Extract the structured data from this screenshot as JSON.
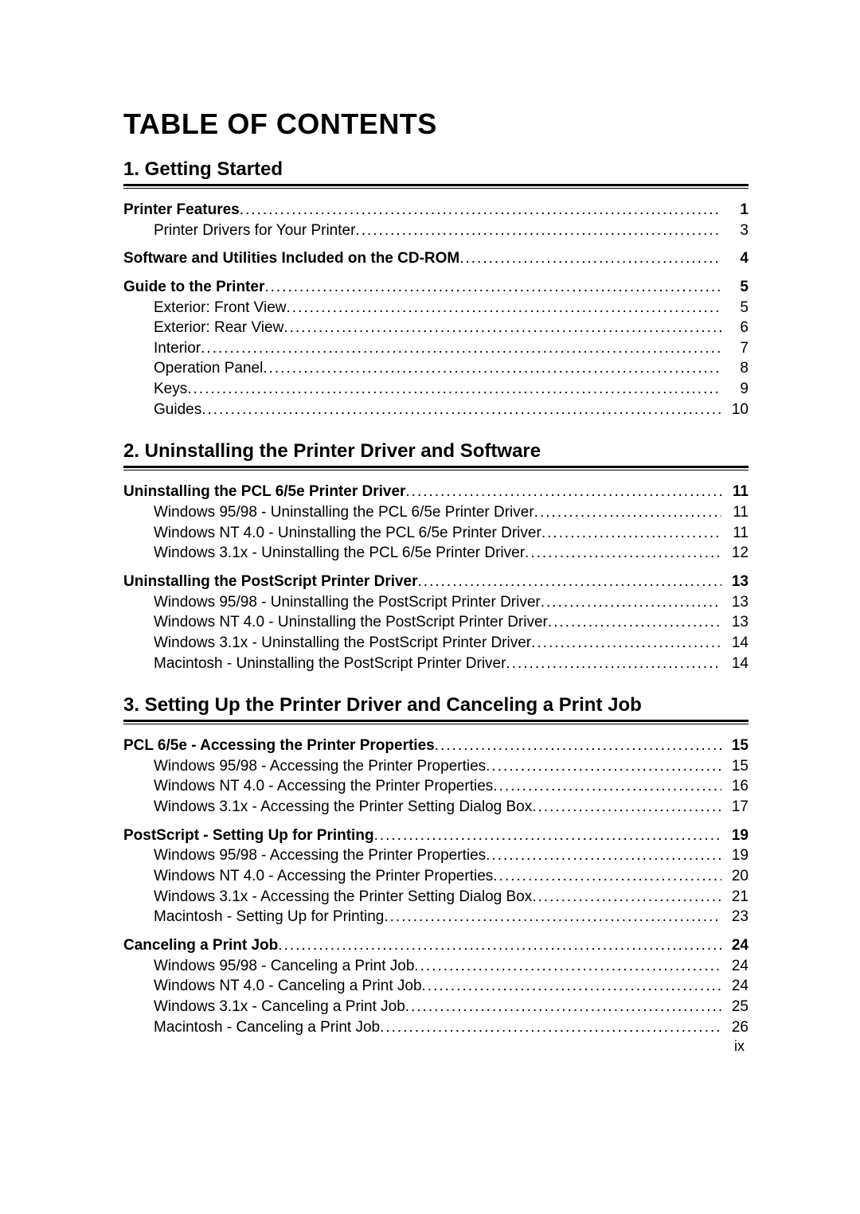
{
  "title": "TABLE OF CONTENTS",
  "page_number": "ix",
  "chapters": [
    {
      "heading": "1. Getting Started",
      "groups": [
        {
          "items": [
            {
              "label": "Printer Features",
              "page": "1",
              "bold": true,
              "sub": false
            },
            {
              "label": "Printer Drivers for Your Printer",
              "page": "3",
              "bold": false,
              "sub": true
            }
          ]
        },
        {
          "items": [
            {
              "label": "Software and Utilities Included on the CD-ROM",
              "page": "4",
              "bold": true,
              "sub": false
            }
          ]
        },
        {
          "items": [
            {
              "label": "Guide to the Printer",
              "page": "5",
              "bold": true,
              "sub": false
            },
            {
              "label": "Exterior: Front View",
              "page": "5",
              "bold": false,
              "sub": true
            },
            {
              "label": "Exterior: Rear View",
              "page": "6",
              "bold": false,
              "sub": true
            },
            {
              "label": "Interior",
              "page": "7",
              "bold": false,
              "sub": true
            },
            {
              "label": "Operation Panel",
              "page": "8",
              "bold": false,
              "sub": true
            },
            {
              "label": "Keys",
              "page": "9",
              "bold": false,
              "sub": true
            },
            {
              "label": "Guides",
              "page": "10",
              "bold": false,
              "sub": true
            }
          ]
        }
      ]
    },
    {
      "heading": "2. Uninstalling the Printer Driver and Software",
      "groups": [
        {
          "items": [
            {
              "label": "Uninstalling the PCL 6/5e Printer Driver",
              "page": "11",
              "bold": true,
              "sub": false
            },
            {
              "label": "Windows 95/98 - Uninstalling the PCL 6/5e Printer Driver",
              "page": "11",
              "bold": false,
              "sub": true
            },
            {
              "label": "Windows NT 4.0 - Uninstalling the PCL 6/5e Printer Driver",
              "page": "11",
              "bold": false,
              "sub": true
            },
            {
              "label": "Windows 3.1x - Uninstalling the PCL 6/5e Printer Driver",
              "page": "12",
              "bold": false,
              "sub": true
            }
          ]
        },
        {
          "items": [
            {
              "label": "Uninstalling the PostScript Printer Driver",
              "page": "13",
              "bold": true,
              "sub": false
            },
            {
              "label": "Windows 95/98 - Uninstalling the PostScript Printer Driver",
              "page": "13",
              "bold": false,
              "sub": true
            },
            {
              "label": "Windows NT 4.0 - Uninstalling the PostScript Printer Driver",
              "page": "13",
              "bold": false,
              "sub": true
            },
            {
              "label": "Windows 3.1x - Uninstalling the PostScript Printer Driver",
              "page": "14",
              "bold": false,
              "sub": true
            },
            {
              "label": "Macintosh - Uninstalling the PostScript Printer Driver",
              "page": "14",
              "bold": false,
              "sub": true
            }
          ]
        }
      ]
    },
    {
      "heading": "3. Setting Up the Printer Driver and Canceling a Print Job",
      "groups": [
        {
          "items": [
            {
              "label": "PCL 6/5e - Accessing the Printer Properties",
              "page": "15",
              "bold": true,
              "sub": false
            },
            {
              "label": "Windows 95/98 - Accessing the Printer Properties",
              "page": "15",
              "bold": false,
              "sub": true
            },
            {
              "label": "Windows NT 4.0 - Accessing the Printer Properties",
              "page": "16",
              "bold": false,
              "sub": true
            },
            {
              "label": "Windows 3.1x - Accessing the Printer Setting Dialog Box",
              "page": "17",
              "bold": false,
              "sub": true
            }
          ]
        },
        {
          "items": [
            {
              "label": "PostScript - Setting Up for Printing",
              "page": "19",
              "bold": true,
              "sub": false
            },
            {
              "label": "Windows 95/98 - Accessing the Printer Properties",
              "page": "19",
              "bold": false,
              "sub": true
            },
            {
              "label": "Windows NT 4.0 - Accessing the Printer Properties",
              "page": "20",
              "bold": false,
              "sub": true
            },
            {
              "label": "Windows 3.1x - Accessing the Printer Setting Dialog Box",
              "page": "21",
              "bold": false,
              "sub": true
            },
            {
              "label": "Macintosh - Setting Up for Printing",
              "page": "23",
              "bold": false,
              "sub": true
            }
          ]
        },
        {
          "items": [
            {
              "label": "Canceling a Print Job",
              "page": "24",
              "bold": true,
              "sub": false
            },
            {
              "label": "Windows 95/98 - Canceling a Print Job",
              "page": "24",
              "bold": false,
              "sub": true
            },
            {
              "label": "Windows NT 4.0 - Canceling a Print Job",
              "page": "24",
              "bold": false,
              "sub": true
            },
            {
              "label": "Windows 3.1x - Canceling a Print Job",
              "page": "25",
              "bold": false,
              "sub": true
            },
            {
              "label": "Macintosh - Canceling a Print Job",
              "page": "26",
              "bold": false,
              "sub": true
            }
          ]
        }
      ]
    }
  ]
}
